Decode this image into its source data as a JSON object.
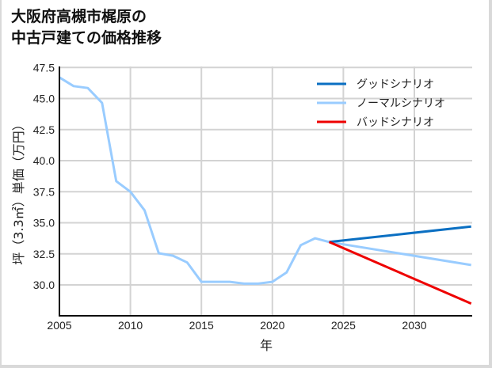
{
  "title": "大阪府高槻市梶原の\n中古戸建ての価格推移",
  "colors": {
    "good": "#0a6fc2",
    "normal": "#99ccff",
    "bad": "#ee0000",
    "grid": "#d3d3d3",
    "axis": "#000000"
  },
  "chart_data": {
    "type": "line",
    "title": "大阪府高槻市梶原の中古戸建ての価格推移",
    "xlabel": "年",
    "ylabel": "坪（3.3㎡）単価（万円）",
    "xlim": [
      2005,
      2034
    ],
    "ylim": [
      28.2,
      47.7
    ],
    "xticks": [
      2005,
      2010,
      2015,
      2020,
      2025,
      2030
    ],
    "yticks": [
      30.0,
      32.5,
      35.0,
      37.5,
      40.0,
      42.5,
      45.0,
      47.5
    ],
    "ytick_labels": [
      "30.0",
      "32.5",
      "35.0",
      "37.5",
      "40.0",
      "42.5",
      "45.0",
      "47.5"
    ],
    "grid": true,
    "legend_position": "upper right",
    "series": [
      {
        "name": "グッドシナリオ",
        "color": "#0a6fc2",
        "x": [
          2024,
          2034
        ],
        "y": [
          33.45,
          34.7
        ]
      },
      {
        "name": "ノーマルシナリオ",
        "color": "#99ccff",
        "x": [
          2005,
          2006,
          2007,
          2008,
          2009,
          2010,
          2011,
          2012,
          2013,
          2014,
          2015,
          2016,
          2017,
          2018,
          2019,
          2020,
          2021,
          2022,
          2023,
          2024,
          2034
        ],
        "y": [
          46.7,
          46.0,
          45.85,
          44.65,
          38.35,
          37.5,
          36.0,
          32.55,
          32.35,
          31.8,
          30.25,
          30.25,
          30.25,
          30.1,
          30.1,
          30.25,
          31.0,
          33.2,
          33.75,
          33.45,
          31.6
        ]
      },
      {
        "name": "バッドシナリオ",
        "color": "#ee0000",
        "x": [
          2024,
          2034
        ],
        "y": [
          33.45,
          28.5
        ]
      }
    ]
  }
}
